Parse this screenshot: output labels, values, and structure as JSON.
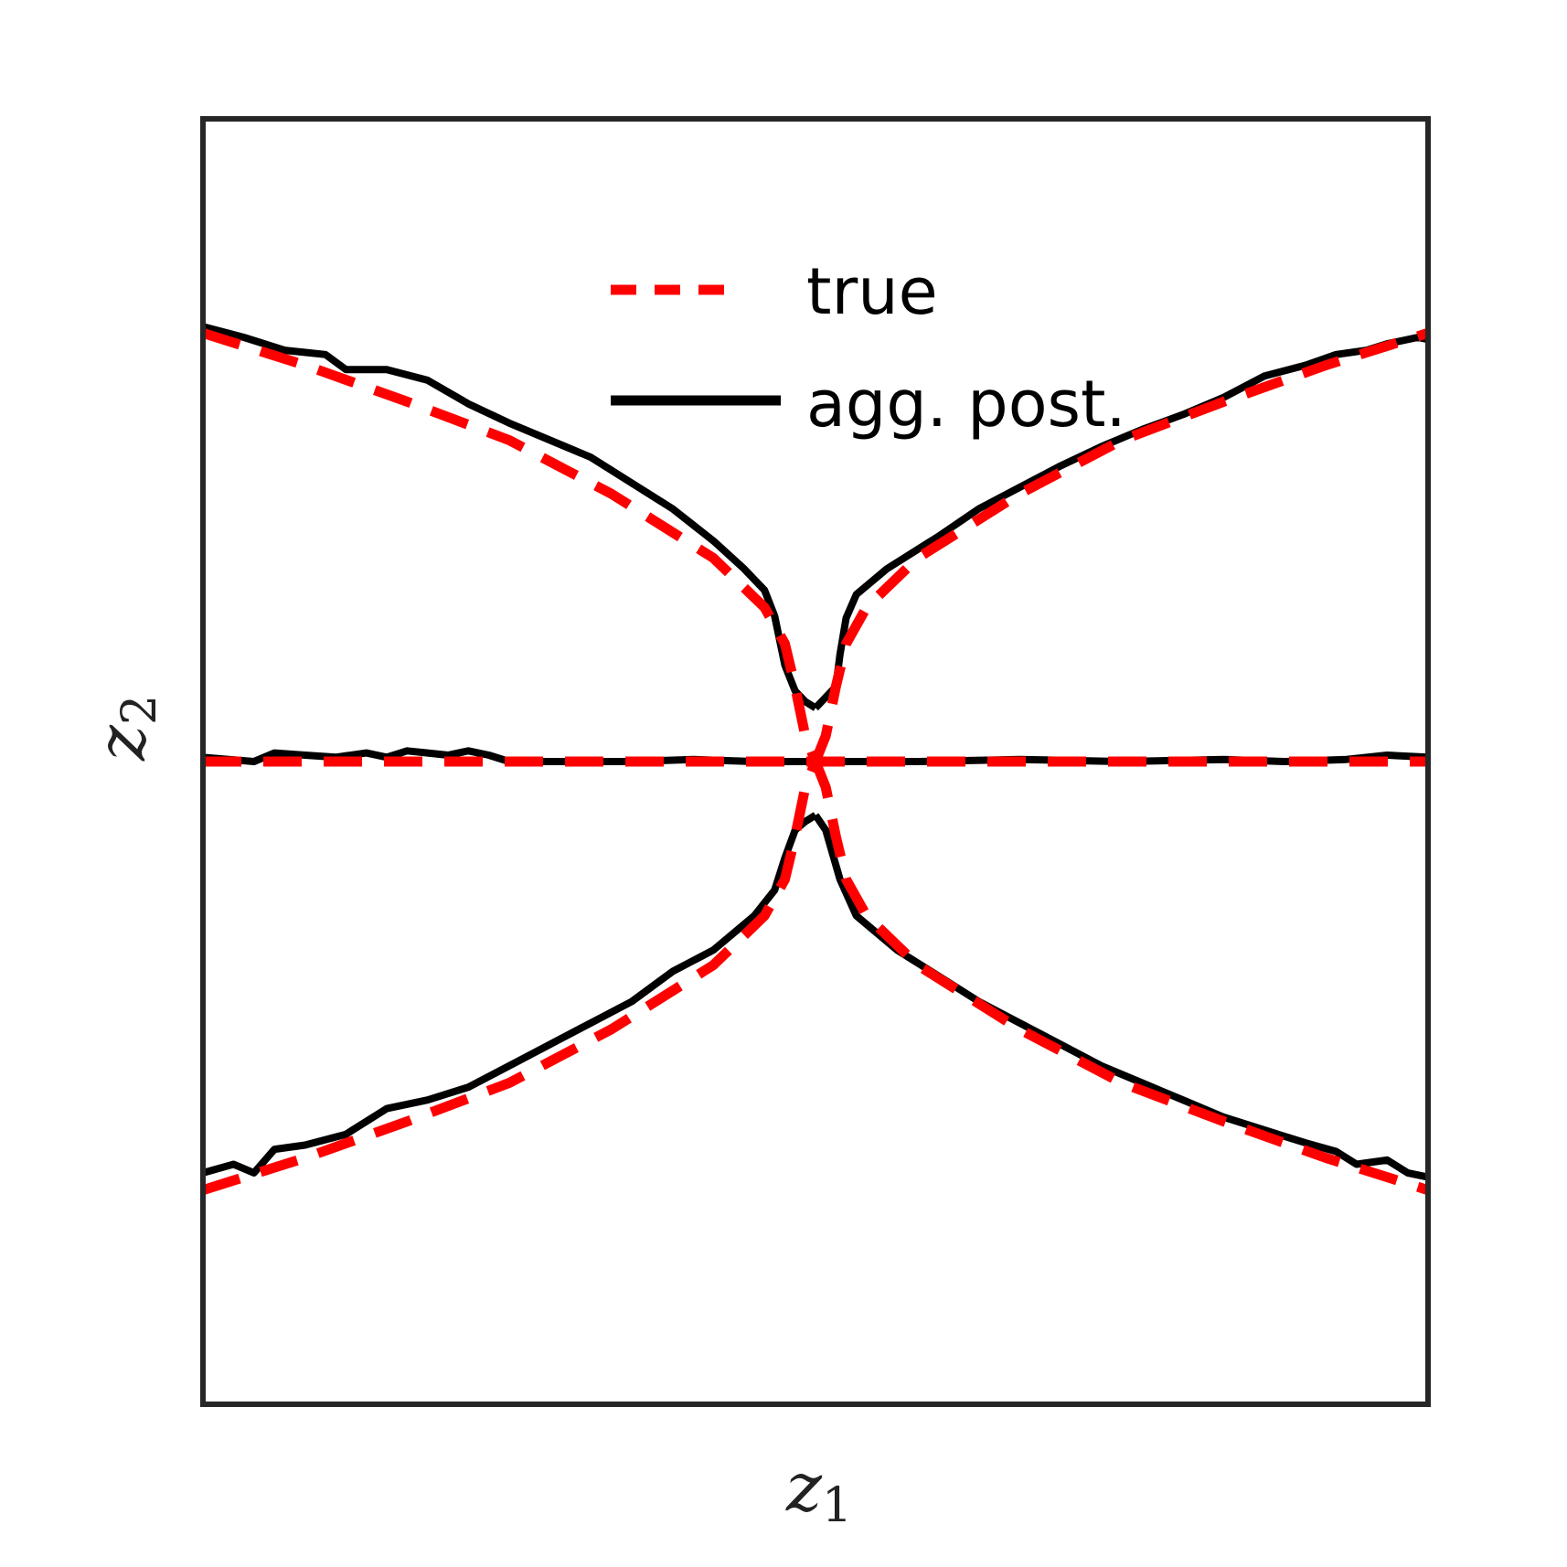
{
  "chart_data": {
    "type": "line",
    "title": "",
    "xlabel": "z",
    "xlabel_subscript": "1",
    "ylabel": "z",
    "ylabel_subscript": "2",
    "xlim": [
      -3,
      3
    ],
    "ylim": [
      -3,
      3
    ],
    "ticks_visible": false,
    "grid": false,
    "legend": {
      "placement": "upper-center",
      "entries": [
        {
          "label": "true",
          "style": "dashed",
          "color": "#ff0000"
        },
        {
          "label": "agg. post.",
          "style": "solid",
          "color": "#000000"
        }
      ]
    },
    "series": [
      {
        "name": "true",
        "color": "#ff0000",
        "dash": true,
        "segments": [
          [
            [
              -3.0,
              2.0
            ],
            [
              -2.5,
              1.85
            ],
            [
              -2.0,
              1.68
            ],
            [
              -1.5,
              1.5
            ],
            [
              -1.0,
              1.25
            ],
            [
              -0.5,
              0.95
            ],
            [
              -0.25,
              0.72
            ],
            [
              -0.15,
              0.55
            ],
            [
              -0.1,
              0.35
            ],
            [
              -0.05,
              0.12
            ],
            [
              0.0,
              0.0
            ]
          ],
          [
            [
              0.0,
              0.0
            ],
            [
              0.05,
              0.12
            ],
            [
              0.1,
              0.35
            ],
            [
              0.15,
              0.55
            ],
            [
              0.25,
              0.72
            ],
            [
              0.5,
              0.95
            ],
            [
              1.0,
              1.25
            ],
            [
              1.5,
              1.5
            ],
            [
              2.0,
              1.68
            ],
            [
              2.5,
              1.85
            ],
            [
              3.0,
              2.0
            ]
          ],
          [
            [
              -3.0,
              0.0
            ],
            [
              3.0,
              0.0
            ]
          ],
          [
            [
              -3.0,
              -2.0
            ],
            [
              -2.5,
              -1.85
            ],
            [
              -2.0,
              -1.68
            ],
            [
              -1.5,
              -1.5
            ],
            [
              -1.0,
              -1.25
            ],
            [
              -0.5,
              -0.95
            ],
            [
              -0.25,
              -0.72
            ],
            [
              -0.15,
              -0.55
            ],
            [
              -0.1,
              -0.35
            ],
            [
              -0.05,
              -0.12
            ],
            [
              0.0,
              0.0
            ]
          ],
          [
            [
              0.0,
              0.0
            ],
            [
              0.05,
              -0.12
            ],
            [
              0.1,
              -0.35
            ],
            [
              0.15,
              -0.55
            ],
            [
              0.25,
              -0.72
            ],
            [
              0.5,
              -0.95
            ],
            [
              1.0,
              -1.25
            ],
            [
              1.5,
              -1.5
            ],
            [
              2.0,
              -1.68
            ],
            [
              2.5,
              -1.85
            ],
            [
              3.0,
              -2.0
            ]
          ]
        ]
      },
      {
        "name": "agg. post.",
        "color": "#000000",
        "dash": false,
        "segments": [
          [
            [
              -3.0,
              2.03
            ],
            [
              -2.8,
              1.98
            ],
            [
              -2.6,
              1.92
            ],
            [
              -2.4,
              1.9
            ],
            [
              -2.3,
              1.83
            ],
            [
              -2.1,
              1.83
            ],
            [
              -1.9,
              1.78
            ],
            [
              -1.7,
              1.67
            ],
            [
              -1.5,
              1.58
            ],
            [
              -1.3,
              1.5
            ],
            [
              -1.1,
              1.42
            ],
            [
              -0.9,
              1.3
            ],
            [
              -0.7,
              1.18
            ],
            [
              -0.5,
              1.03
            ],
            [
              -0.35,
              0.9
            ],
            [
              -0.25,
              0.8
            ],
            [
              -0.2,
              0.68
            ],
            [
              -0.15,
              0.45
            ],
            [
              -0.1,
              0.33
            ],
            [
              -0.05,
              0.28
            ],
            [
              0.0,
              0.25
            ]
          ],
          [
            [
              0.0,
              0.25
            ],
            [
              0.05,
              0.3
            ],
            [
              0.1,
              0.35
            ],
            [
              0.12,
              0.5
            ],
            [
              0.15,
              0.67
            ],
            [
              0.2,
              0.78
            ],
            [
              0.35,
              0.9
            ],
            [
              0.6,
              1.05
            ],
            [
              0.8,
              1.18
            ],
            [
              1.0,
              1.28
            ],
            [
              1.2,
              1.38
            ],
            [
              1.4,
              1.47
            ],
            [
              1.6,
              1.55
            ],
            [
              1.8,
              1.62
            ],
            [
              2.0,
              1.7
            ],
            [
              2.2,
              1.8
            ],
            [
              2.4,
              1.85
            ],
            [
              2.55,
              1.9
            ],
            [
              2.7,
              1.92
            ],
            [
              2.8,
              1.95
            ],
            [
              2.95,
              1.98
            ],
            [
              3.0,
              1.97
            ]
          ],
          [
            [
              -3.0,
              0.02
            ],
            [
              -2.75,
              0.0
            ],
            [
              -2.65,
              0.04
            ],
            [
              -2.5,
              0.03
            ],
            [
              -2.35,
              0.02
            ],
            [
              -2.2,
              0.04
            ],
            [
              -2.1,
              0.02
            ],
            [
              -2.0,
              0.05
            ],
            [
              -1.9,
              0.04
            ],
            [
              -1.8,
              0.03
            ],
            [
              -1.7,
              0.05
            ],
            [
              -1.6,
              0.03
            ],
            [
              -1.5,
              0.0
            ],
            [
              -1.2,
              0.0
            ],
            [
              -0.9,
              0.0
            ],
            [
              -0.6,
              0.01
            ],
            [
              -0.3,
              0.0
            ],
            [
              0.0,
              0.0
            ],
            [
              0.5,
              0.0
            ],
            [
              1.0,
              0.01
            ],
            [
              1.5,
              0.0
            ],
            [
              2.0,
              0.01
            ],
            [
              2.3,
              0.0
            ],
            [
              2.6,
              0.01
            ],
            [
              2.8,
              0.03
            ],
            [
              3.0,
              0.02
            ]
          ],
          [
            [
              -3.0,
              -1.92
            ],
            [
              -2.85,
              -1.88
            ],
            [
              -2.75,
              -1.92
            ],
            [
              -2.65,
              -1.81
            ],
            [
              -2.5,
              -1.79
            ],
            [
              -2.3,
              -1.74
            ],
            [
              -2.1,
              -1.62
            ],
            [
              -1.9,
              -1.58
            ],
            [
              -1.7,
              -1.52
            ],
            [
              -1.5,
              -1.42
            ],
            [
              -1.3,
              -1.32
            ],
            [
              -1.1,
              -1.22
            ],
            [
              -0.9,
              -1.12
            ],
            [
              -0.7,
              -0.98
            ],
            [
              -0.5,
              -0.88
            ],
            [
              -0.3,
              -0.72
            ],
            [
              -0.2,
              -0.6
            ],
            [
              -0.15,
              -0.45
            ],
            [
              -0.1,
              -0.32
            ],
            [
              -0.05,
              -0.28
            ],
            [
              0.0,
              -0.25
            ]
          ],
          [
            [
              0.0,
              -0.25
            ],
            [
              0.05,
              -0.32
            ],
            [
              0.12,
              -0.55
            ],
            [
              0.2,
              -0.72
            ],
            [
              0.4,
              -0.88
            ],
            [
              0.6,
              -1.0
            ],
            [
              0.8,
              -1.12
            ],
            [
              1.0,
              -1.22
            ],
            [
              1.2,
              -1.32
            ],
            [
              1.4,
              -1.42
            ],
            [
              1.6,
              -1.5
            ],
            [
              1.8,
              -1.58
            ],
            [
              2.0,
              -1.66
            ],
            [
              2.2,
              -1.72
            ],
            [
              2.4,
              -1.78
            ],
            [
              2.55,
              -1.82
            ],
            [
              2.65,
              -1.88
            ],
            [
              2.8,
              -1.86
            ],
            [
              2.9,
              -1.92
            ],
            [
              3.0,
              -1.94
            ]
          ]
        ]
      }
    ]
  }
}
